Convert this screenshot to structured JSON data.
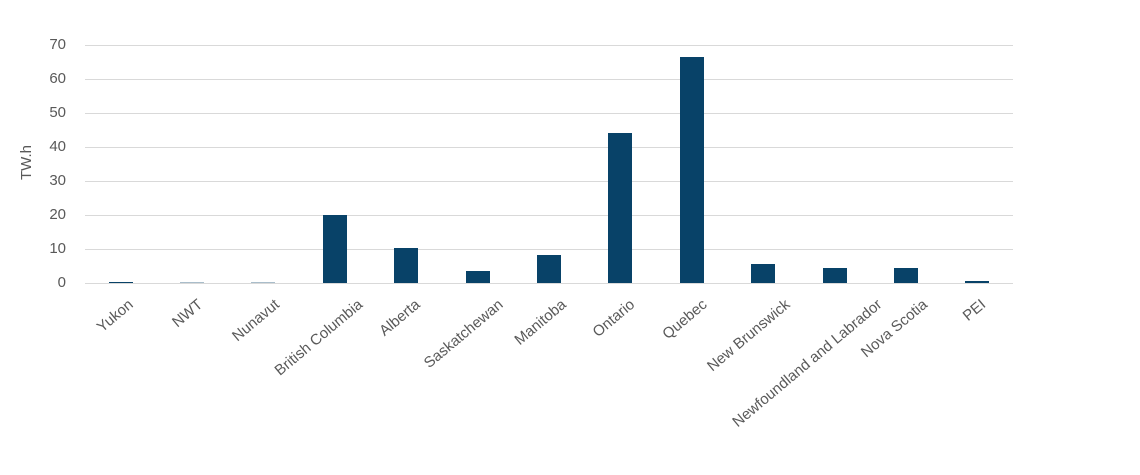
{
  "chart_data": {
    "type": "bar",
    "title": "",
    "xlabel": "",
    "ylabel": "TW.h",
    "ylim": [
      0,
      70
    ],
    "yticks": [
      0,
      10,
      20,
      30,
      40,
      50,
      60,
      70
    ],
    "grid": true,
    "legend": null,
    "bar_color": "#084268",
    "categories": [
      "Yukon",
      "NWT",
      "Nunavut",
      "British Columbia",
      "Alberta",
      "Saskatchewan",
      "Manitoba",
      "Ontario",
      "Quebec",
      "New Brunswick",
      "Newfoundland and Labrador",
      "Nova Scotia",
      "PEI"
    ],
    "values": [
      0.4,
      0.1,
      0.1,
      20.0,
      10.3,
      3.5,
      8.2,
      44.1,
      66.6,
      5.6,
      4.4,
      4.4,
      0.5
    ]
  }
}
